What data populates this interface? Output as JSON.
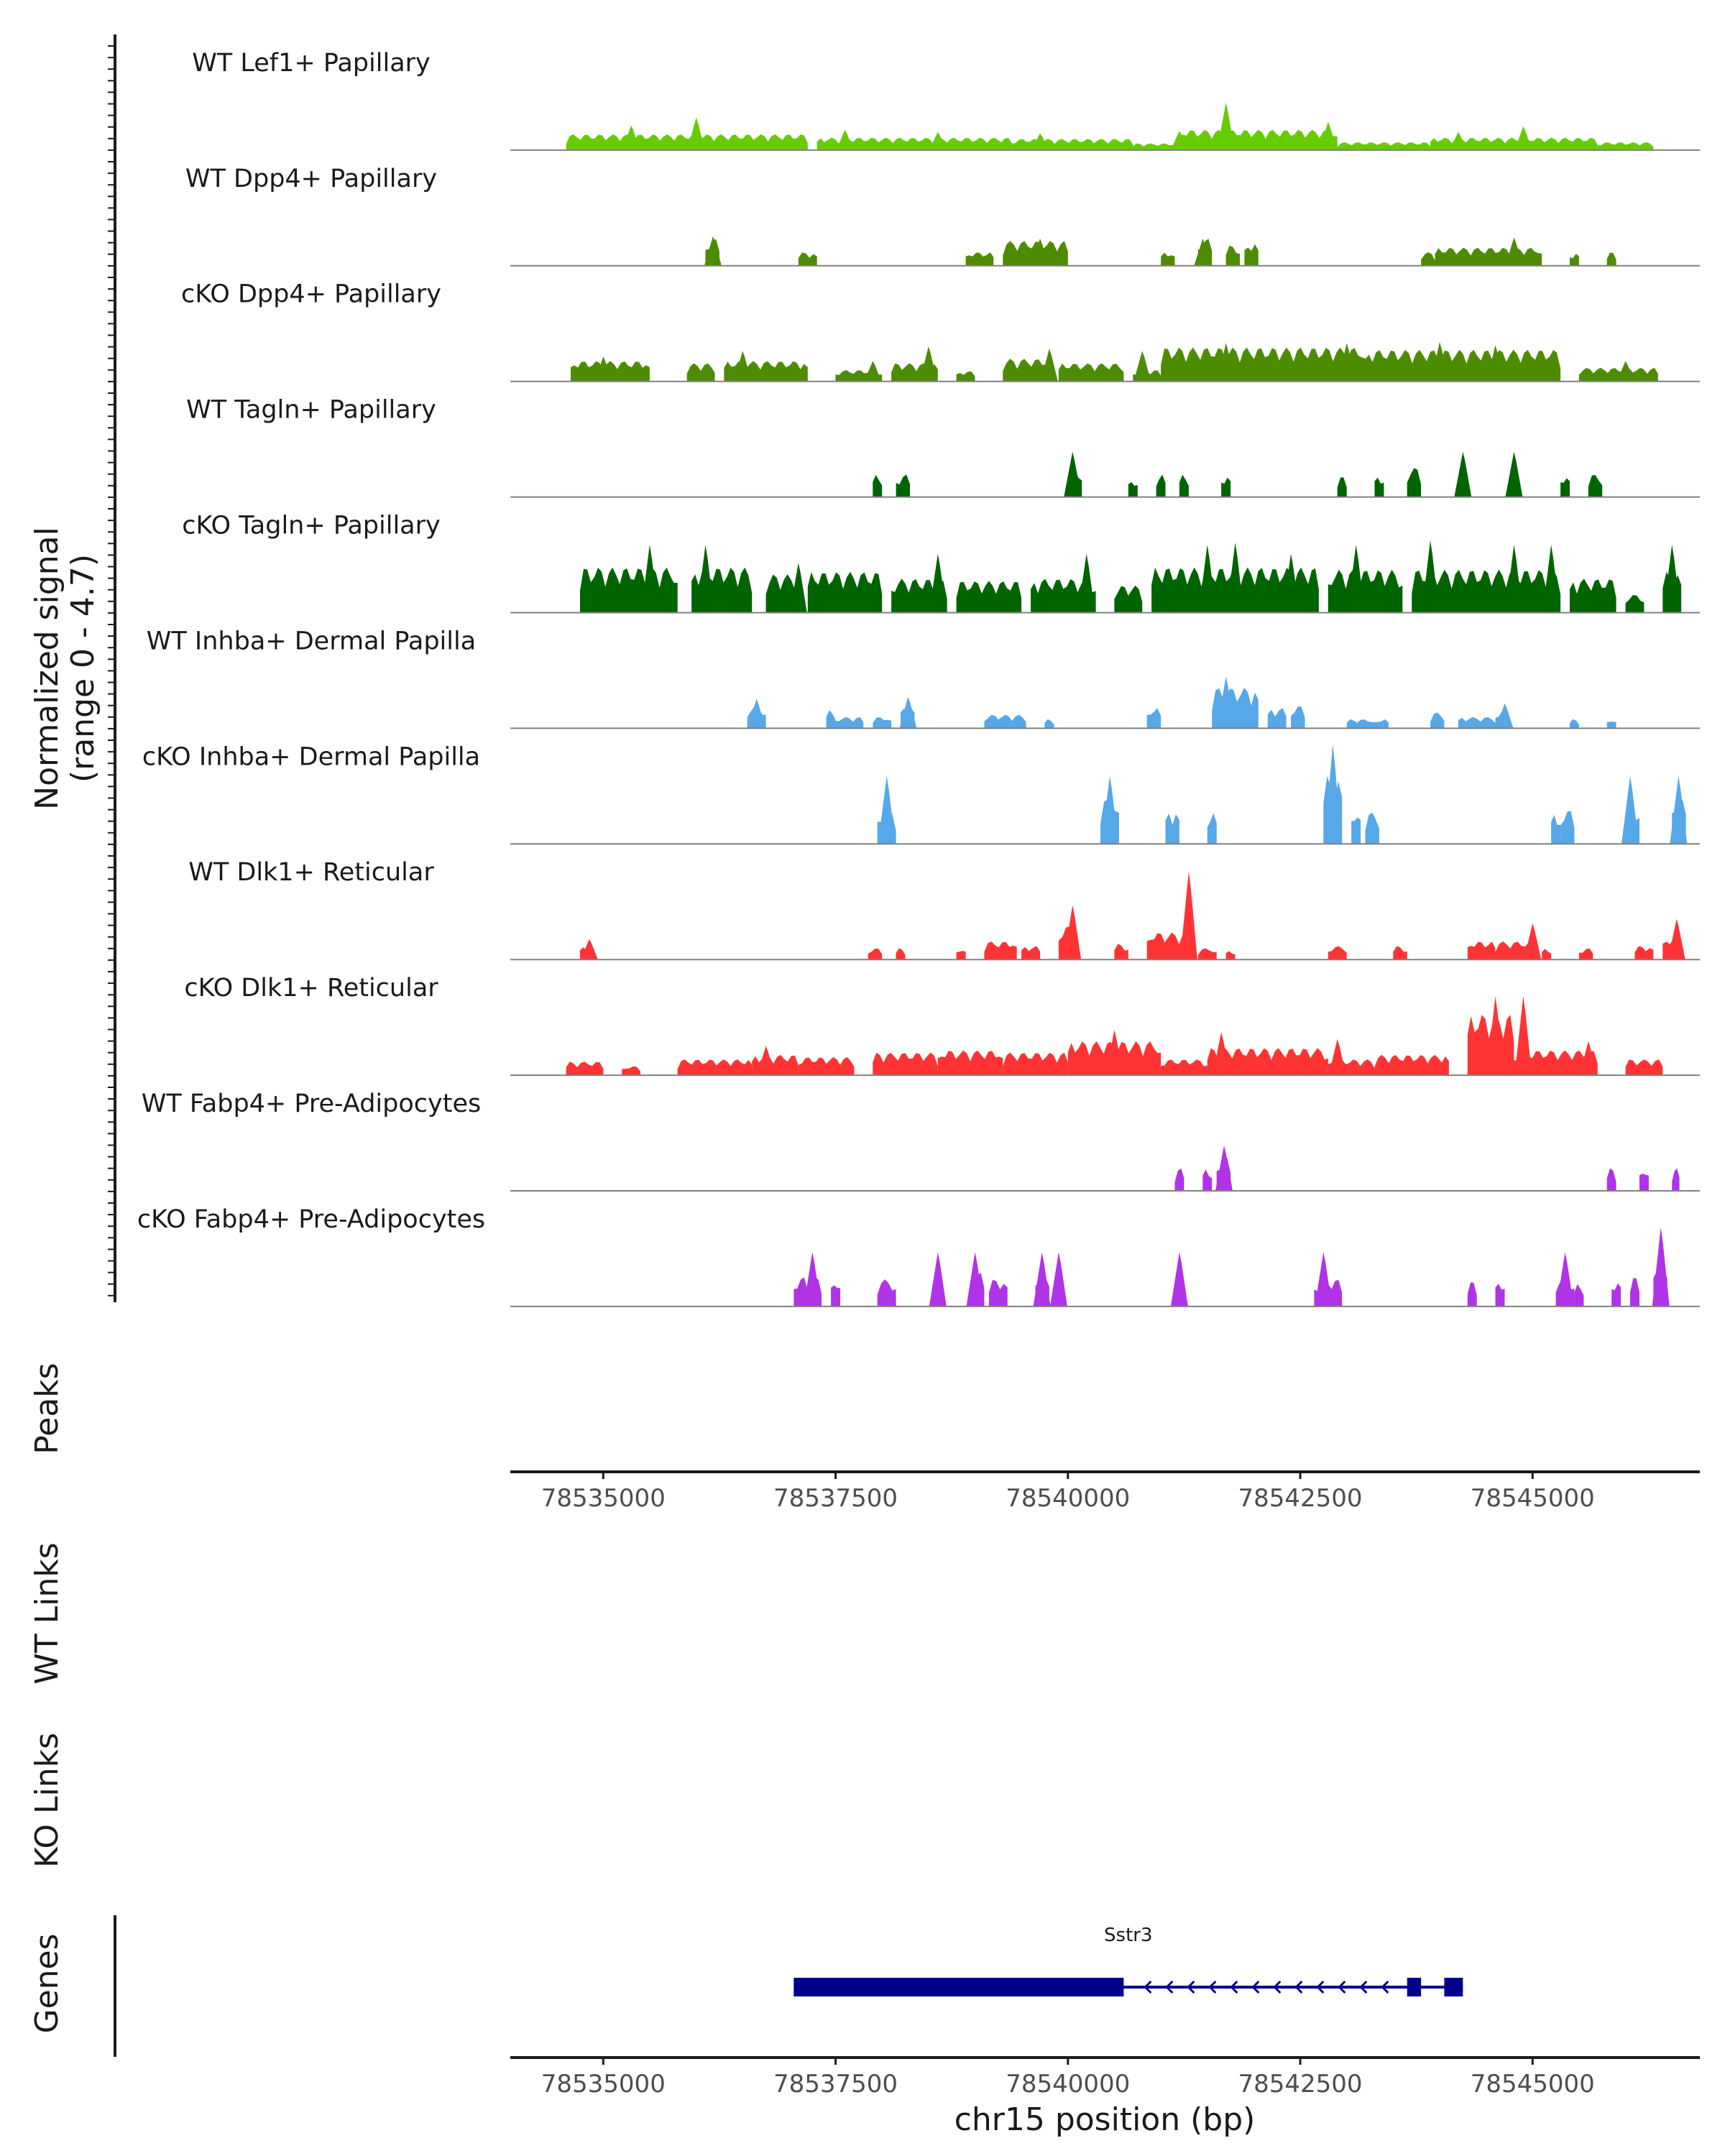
{
  "chart_data": {
    "type": "area",
    "chromosome": "chr15",
    "xlim": [
      78534000,
      78546800
    ],
    "ylim": [
      0,
      4.7
    ],
    "y_axis_title": "Normalized signal",
    "y_axis_subtitle": "(range 0 - 4.7)",
    "x_axis_title": "chr15 position (bp)",
    "x_ticks": [
      78535000,
      78537500,
      78540000,
      78542500,
      78545000
    ],
    "x_tick_labels": [
      "78535000",
      "78537500",
      "78540000",
      "78542500",
      "78545000"
    ],
    "side_panels": [
      "Peaks",
      "WT Links",
      "KO Links",
      "Genes"
    ],
    "tracks": [
      {
        "name": "WT Lef1+ Papillary",
        "color": "#66cc00",
        "segments": [
          [
            78534600,
            78537200,
            0.7
          ],
          [
            78537300,
            78539400,
            0.55
          ],
          [
            78539400,
            78540700,
            0.5
          ],
          [
            78540700,
            78541200,
            0.3
          ],
          [
            78541200,
            78542900,
            0.9
          ],
          [
            78542900,
            78543900,
            0.35
          ],
          [
            78543900,
            78545700,
            0.55
          ],
          [
            78545700,
            78546300,
            0.35
          ]
        ],
        "peaks": [
          [
            78535300,
            1.1
          ],
          [
            78536000,
            1.45
          ],
          [
            78537600,
            0.9
          ],
          [
            78538600,
            0.8
          ],
          [
            78539700,
            0.75
          ],
          [
            78541200,
            0.85
          ],
          [
            78541700,
            2.1
          ],
          [
            78542800,
            1.25
          ],
          [
            78544200,
            0.8
          ],
          [
            78544900,
            1.05
          ]
        ]
      },
      {
        "name": "WT Dpp4+ Papillary",
        "color": "#4d8c00",
        "segments": [
          [
            78536100,
            78536250,
            1.2
          ],
          [
            78537100,
            78537300,
            0.6
          ],
          [
            78538900,
            78539200,
            0.6
          ],
          [
            78539300,
            78540000,
            1.1
          ],
          [
            78541000,
            78541150,
            0.6
          ],
          [
            78541400,
            78541550,
            1.2
          ],
          [
            78541700,
            78541850,
            0.9
          ],
          [
            78541900,
            78542050,
            1.0
          ],
          [
            78543800,
            78543950,
            0.6
          ],
          [
            78543950,
            78545100,
            0.8
          ],
          [
            78545400,
            78545500,
            0.6
          ],
          [
            78545800,
            78545900,
            0.6
          ]
        ],
        "peaks": [
          [
            78536180,
            1.3
          ],
          [
            78539700,
            1.2
          ],
          [
            78541450,
            1.2
          ],
          [
            78544800,
            1.25
          ]
        ]
      },
      {
        "name": "cKO Dpp4+ Papillary",
        "color": "#4d8c00",
        "segments": [
          [
            78534650,
            78535500,
            0.9
          ],
          [
            78535900,
            78536200,
            0.8
          ],
          [
            78536300,
            78537200,
            0.9
          ],
          [
            78537500,
            78538000,
            0.5
          ],
          [
            78538100,
            78538600,
            0.8
          ],
          [
            78538800,
            78539000,
            0.45
          ],
          [
            78539300,
            78539800,
            1.0
          ],
          [
            78539900,
            78540600,
            0.8
          ],
          [
            78540700,
            78541000,
            0.5
          ],
          [
            78541000,
            78543200,
            1.5
          ],
          [
            78543200,
            78545300,
            1.4
          ],
          [
            78545500,
            78546350,
            0.6
          ]
        ],
        "peaks": [
          [
            78535000,
            1.1
          ],
          [
            78536500,
            1.35
          ],
          [
            78537900,
            0.9
          ],
          [
            78538500,
            1.55
          ],
          [
            78539800,
            1.45
          ],
          [
            78540800,
            1.35
          ],
          [
            78541500,
            1.45
          ],
          [
            78541700,
            1.7
          ],
          [
            78542500,
            1.45
          ],
          [
            78543000,
            1.7
          ],
          [
            78544000,
            1.75
          ],
          [
            78544600,
            1.6
          ],
          [
            78545100,
            1.35
          ],
          [
            78546000,
            0.9
          ]
        ]
      },
      {
        "name": "WT Tagln+ Papillary",
        "color": "#006400",
        "segments": [
          [
            78537900,
            78538000,
            1.0
          ],
          [
            78538150,
            78538300,
            1.0
          ],
          [
            78540000,
            78540150,
            1.3
          ],
          [
            78540650,
            78540750,
            0.8
          ],
          [
            78540950,
            78541050,
            1.0
          ],
          [
            78541200,
            78541300,
            1.0
          ],
          [
            78541650,
            78541750,
            1.0
          ],
          [
            78542900,
            78543000,
            0.9
          ],
          [
            78543300,
            78543400,
            1.0
          ],
          [
            78543650,
            78543800,
            1.3
          ],
          [
            78544200,
            78544300,
            1.1
          ],
          [
            78545300,
            78545400,
            1.0
          ],
          [
            78545600,
            78545750,
            1.0
          ]
        ],
        "peaks": [
          [
            78540050,
            2.0
          ],
          [
            78544250,
            2.0
          ],
          [
            78544800,
            2.0
          ]
        ]
      },
      {
        "name": "cKO Tagln+ Papillary",
        "color": "#006400",
        "segments": [
          [
            78534750,
            78535800,
            2.0
          ],
          [
            78535950,
            78536600,
            2.0
          ],
          [
            78536750,
            78537100,
            1.7
          ],
          [
            78537200,
            78538000,
            1.8
          ],
          [
            78538100,
            78538700,
            1.5
          ],
          [
            78538800,
            78539500,
            1.4
          ],
          [
            78539600,
            78540300,
            1.5
          ],
          [
            78540500,
            78540800,
            1.2
          ],
          [
            78540900,
            78542700,
            2.0
          ],
          [
            78542800,
            78543600,
            1.9
          ],
          [
            78543700,
            78545300,
            1.9
          ],
          [
            78545400,
            78545900,
            1.5
          ],
          [
            78546000,
            78546200,
            0.8
          ],
          [
            78546400,
            78546600,
            1.8
          ]
        ],
        "peaks": [
          [
            78535500,
            3.0
          ],
          [
            78536100,
            3.0
          ],
          [
            78537100,
            2.2
          ],
          [
            78538600,
            2.6
          ],
          [
            78540200,
            2.6
          ],
          [
            78541500,
            3.0
          ],
          [
            78541800,
            3.1
          ],
          [
            78542400,
            2.6
          ],
          [
            78543100,
            3.0
          ],
          [
            78543900,
            3.2
          ],
          [
            78544800,
            3.0
          ],
          [
            78545200,
            3.0
          ],
          [
            78546500,
            3.0
          ]
        ]
      },
      {
        "name": "WT Inhba+ Dermal Papilla",
        "color": "#56a8e8",
        "segments": [
          [
            78536550,
            78536750,
            1.0
          ],
          [
            78537400,
            78537500,
            0.8
          ],
          [
            78537500,
            78537800,
            0.5
          ],
          [
            78537900,
            78538100,
            0.5
          ],
          [
            78538200,
            78538350,
            1.0
          ],
          [
            78539100,
            78539550,
            0.6
          ],
          [
            78539750,
            78539850,
            0.4
          ],
          [
            78540850,
            78541000,
            0.9
          ],
          [
            78541550,
            78542050,
            1.8
          ],
          [
            78542150,
            78542350,
            0.9
          ],
          [
            78542400,
            78542550,
            1.0
          ],
          [
            78543000,
            78543300,
            0.4
          ],
          [
            78543300,
            78543450,
            0.4
          ],
          [
            78543900,
            78544050,
            0.7
          ],
          [
            78544200,
            78544600,
            0.5
          ],
          [
            78544600,
            78544750,
            0.8
          ],
          [
            78545400,
            78545500,
            0.4
          ],
          [
            78545800,
            78545900,
            0.4
          ]
        ],
        "peaks": [
          [
            78536650,
            1.3
          ],
          [
            78538280,
            1.4
          ],
          [
            78541700,
            2.3
          ],
          [
            78544700,
            1.1
          ]
        ]
      },
      {
        "name": "cKO Inhba+ Dermal Papilla",
        "color": "#56a8e8",
        "segments": [
          [
            78537950,
            78538150,
            1.5
          ],
          [
            78540350,
            78540550,
            2.0
          ],
          [
            78541050,
            78541200,
            1.5
          ],
          [
            78541500,
            78541600,
            1.4
          ],
          [
            78542750,
            78542950,
            3.0
          ],
          [
            78543050,
            78543150,
            1.5
          ],
          [
            78543200,
            78543350,
            1.4
          ],
          [
            78545200,
            78545300,
            1.4
          ],
          [
            78545300,
            78545450,
            1.5
          ],
          [
            78546000,
            78546150,
            1.8
          ],
          [
            78546500,
            78546650,
            2.0
          ]
        ],
        "peaks": [
          [
            78538050,
            3.0
          ],
          [
            78540450,
            3.0
          ],
          [
            78542850,
            4.4
          ],
          [
            78546050,
            3.0
          ],
          [
            78546570,
            3.0
          ]
        ]
      },
      {
        "name": "WT Dlk1+ Reticular",
        "color": "#ff3333",
        "segments": [
          [
            78534750,
            78534900,
            0.6
          ],
          [
            78537850,
            78538000,
            0.5
          ],
          [
            78538150,
            78538250,
            0.5
          ],
          [
            78538800,
            78538900,
            0.5
          ],
          [
            78539100,
            78539450,
            0.8
          ],
          [
            78539500,
            78539700,
            0.6
          ],
          [
            78539900,
            78540100,
            1.5
          ],
          [
            78540500,
            78540650,
            0.7
          ],
          [
            78540850,
            78541350,
            1.2
          ],
          [
            78541400,
            78541600,
            0.5
          ],
          [
            78541700,
            78541800,
            0.4
          ],
          [
            78542800,
            78543000,
            0.6
          ],
          [
            78543500,
            78543650,
            0.6
          ],
          [
            78544300,
            78544600,
            0.8
          ],
          [
            78544600,
            78545000,
            0.8
          ],
          [
            78545100,
            78545200,
            0.5
          ],
          [
            78545500,
            78545650,
            0.5
          ],
          [
            78546100,
            78546300,
            0.6
          ],
          [
            78546400,
            78546600,
            1.0
          ]
        ],
        "peaks": [
          [
            78534850,
            0.9
          ],
          [
            78540050,
            2.4
          ],
          [
            78541300,
            3.9
          ],
          [
            78545000,
            1.6
          ],
          [
            78546550,
            1.8
          ]
        ]
      },
      {
        "name": "cKO Dlk1+ Reticular",
        "color": "#ff3333",
        "segments": [
          [
            78534600,
            78535000,
            0.6
          ],
          [
            78535200,
            78535400,
            0.4
          ],
          [
            78535800,
            78536600,
            0.7
          ],
          [
            78536600,
            78537100,
            0.9
          ],
          [
            78537100,
            78537700,
            0.8
          ],
          [
            78537900,
            78538600,
            1.0
          ],
          [
            78538600,
            78539300,
            1.1
          ],
          [
            78539300,
            78540000,
            1.0
          ],
          [
            78540000,
            78541000,
            1.5
          ],
          [
            78541000,
            78541500,
            0.7
          ],
          [
            78541500,
            78542800,
            1.2
          ],
          [
            78542800,
            78543300,
            0.7
          ],
          [
            78543300,
            78544100,
            0.9
          ],
          [
            78544300,
            78544800,
            2.7
          ],
          [
            78544800,
            78545700,
            1.1
          ],
          [
            78546000,
            78546400,
            0.7
          ]
        ],
        "peaks": [
          [
            78536750,
            1.3
          ],
          [
            78540500,
            2.0
          ],
          [
            78541650,
            1.9
          ],
          [
            78542900,
            1.6
          ],
          [
            78544600,
            3.5
          ],
          [
            78544900,
            3.5
          ],
          [
            78545600,
            1.5
          ]
        ]
      },
      {
        "name": "WT Fabp4+ Pre-Adipocytes",
        "color": "#b133e8",
        "segments": [
          [
            78541150,
            78541250,
            1.0
          ],
          [
            78541450,
            78541550,
            1.0
          ],
          [
            78541600,
            78541750,
            1.5
          ],
          [
            78545800,
            78545900,
            1.0
          ],
          [
            78546150,
            78546250,
            1.0
          ],
          [
            78546500,
            78546580,
            1.0
          ]
        ],
        "peaks": [
          [
            78541680,
            2.0
          ]
        ]
      },
      {
        "name": "cKO Fabp4+ Pre-Adipocytes",
        "color": "#b133e8",
        "segments": [
          [
            78537050,
            78537200,
            1.3
          ],
          [
            78537250,
            78537350,
            1.3
          ],
          [
            78537450,
            78537550,
            1.2
          ],
          [
            78537950,
            78538150,
            1.2
          ],
          [
            78538550,
            78538650,
            1.5
          ],
          [
            78538950,
            78539100,
            1.5
          ],
          [
            78539150,
            78539350,
            1.2
          ],
          [
            78539650,
            78539800,
            1.3
          ],
          [
            78539850,
            78539950,
            1.3
          ],
          [
            78541150,
            78541250,
            1.2
          ],
          [
            78542650,
            78542950,
            1.2
          ],
          [
            78544300,
            78544400,
            1.1
          ],
          [
            78544600,
            78544700,
            1.2
          ],
          [
            78545250,
            78545450,
            1.3
          ],
          [
            78545450,
            78545550,
            1.0
          ],
          [
            78545850,
            78545950,
            1.2
          ],
          [
            78546050,
            78546150,
            1.3
          ],
          [
            78546300,
            78546450,
            1.8
          ]
        ],
        "peaks": [
          [
            78537250,
            2.4
          ],
          [
            78538600,
            2.4
          ],
          [
            78539000,
            2.4
          ],
          [
            78539720,
            2.4
          ],
          [
            78539900,
            2.4
          ],
          [
            78541200,
            2.4
          ],
          [
            78542750,
            2.4
          ],
          [
            78545350,
            2.4
          ],
          [
            78546380,
            3.5
          ]
        ]
      }
    ],
    "genes": [
      {
        "name": "Sstr3",
        "strand": "-",
        "start": 78537050,
        "end": 78544250,
        "exons": [
          [
            78537050,
            78540600
          ],
          [
            78543650,
            78543800
          ],
          [
            78544050,
            78544250
          ]
        ]
      }
    ]
  }
}
